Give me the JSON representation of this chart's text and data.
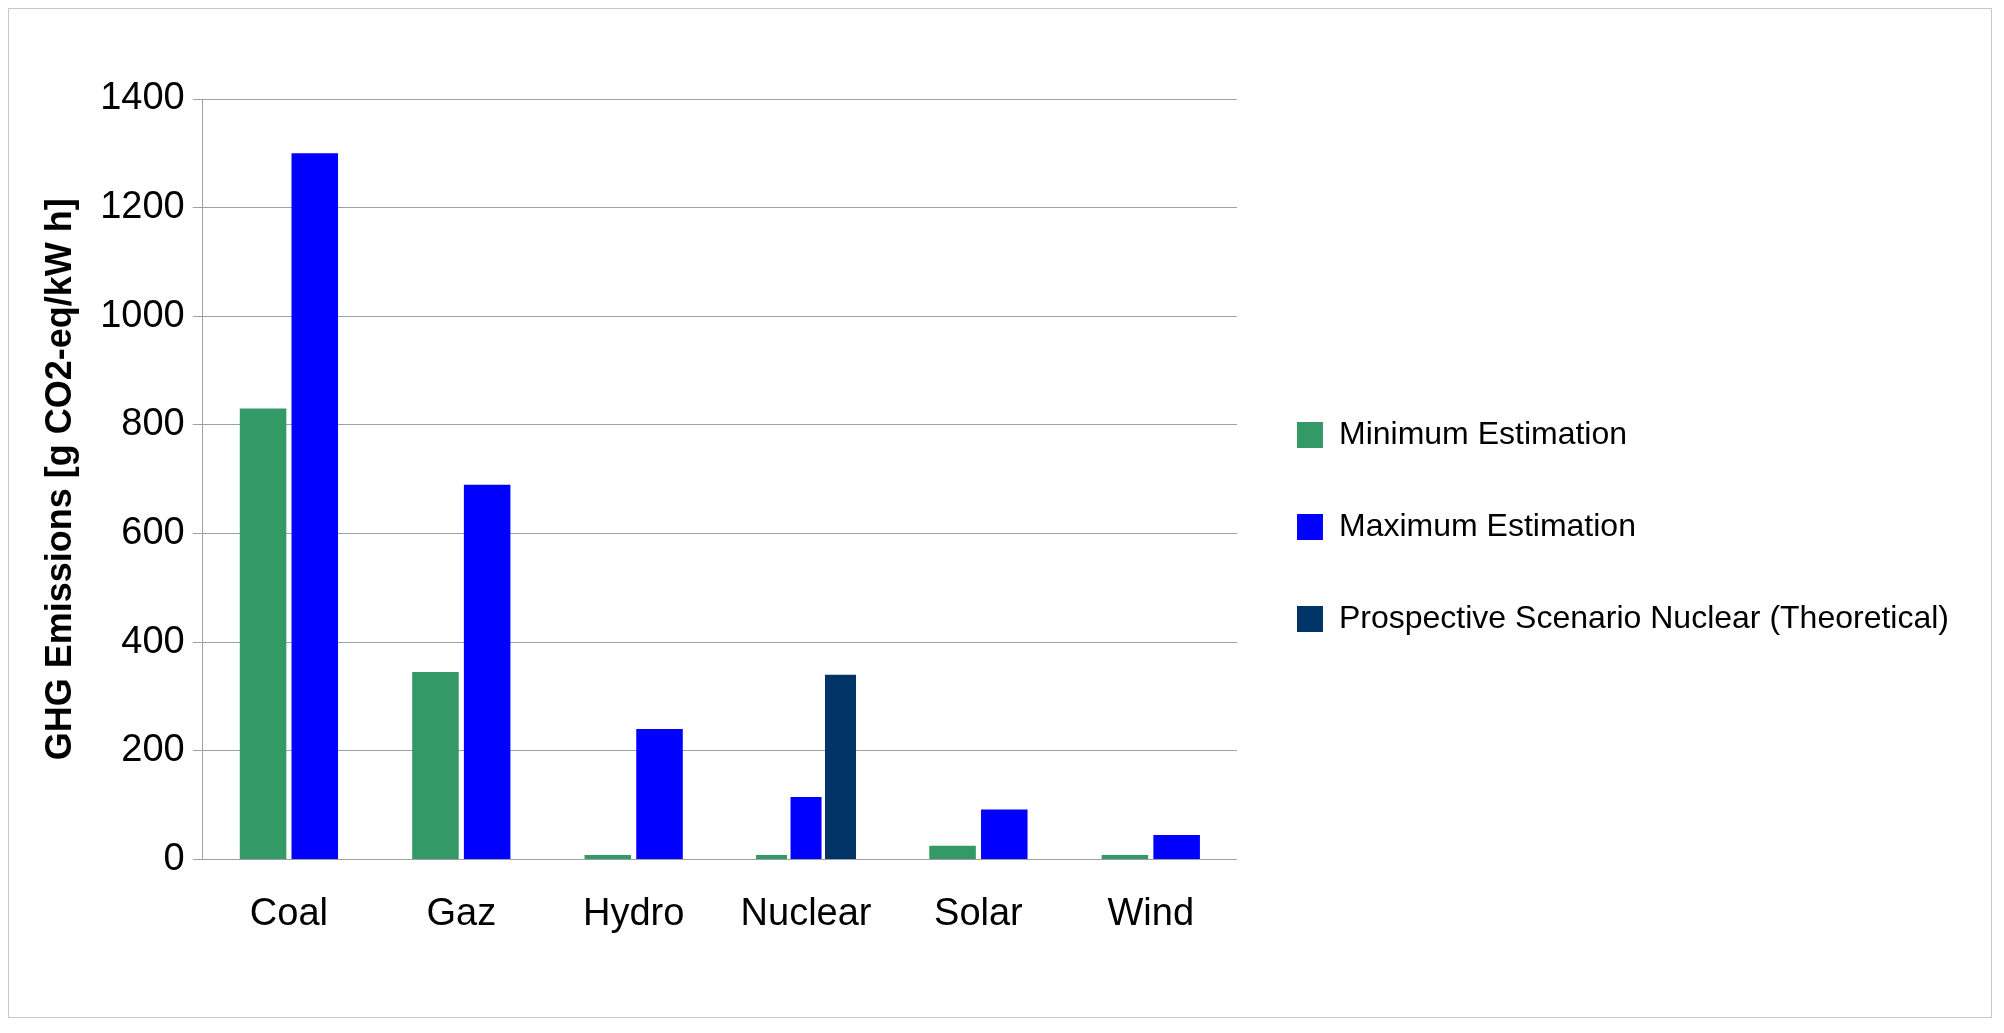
{
  "chart_data": {
    "type": "bar",
    "ylabel": "GHG Emissions [g CO2-eq/kW h]",
    "categories": [
      "Coal",
      "Gaz",
      "Hydro",
      "Nuclear",
      "Solar",
      "Wind"
    ],
    "series": [
      {
        "name": "Minimum Estimation",
        "color": "#339966",
        "values": [
          830,
          345,
          8,
          8,
          25,
          8
        ]
      },
      {
        "name": "Maximum Estimation",
        "color": "#0000ff",
        "values": [
          1300,
          690,
          240,
          115,
          92,
          45
        ]
      },
      {
        "name": "Prospective Scenario Nuclear (Theoretical)",
        "color": "#003366",
        "values": [
          null,
          null,
          null,
          340,
          null,
          null
        ]
      }
    ],
    "ylim": [
      0,
      1400
    ],
    "yticks": [
      0,
      200,
      400,
      600,
      800,
      1000,
      1200,
      1400
    ],
    "grid": "y",
    "legend": "right"
  }
}
